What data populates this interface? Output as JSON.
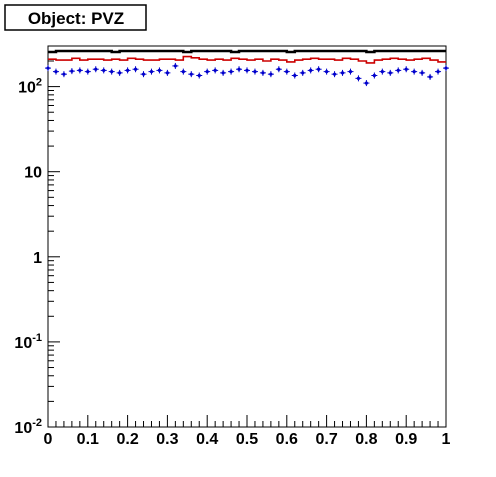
{
  "title": "Object: PVZ",
  "chart_data": {
    "type": "line",
    "title": "Object: PVZ",
    "xlabel": "",
    "ylabel": "",
    "x_scale": "linear",
    "y_scale": "log",
    "xlim": [
      0,
      1
    ],
    "ylim": [
      0.01,
      300
    ],
    "grid": false,
    "x_ticks": [
      {
        "value": 0,
        "label": "0"
      },
      {
        "value": 0.1,
        "label": "0.1"
      },
      {
        "value": 0.2,
        "label": "0.2"
      },
      {
        "value": 0.3,
        "label": "0.3"
      },
      {
        "value": 0.4,
        "label": "0.4"
      },
      {
        "value": 0.5,
        "label": "0.5"
      },
      {
        "value": 0.6,
        "label": "0.6"
      },
      {
        "value": 0.7,
        "label": "0.7"
      },
      {
        "value": 0.8,
        "label": "0.8"
      },
      {
        "value": 0.9,
        "label": "0.9"
      },
      {
        "value": 1,
        "label": "1"
      }
    ],
    "y_ticks": [
      {
        "value": 0.01,
        "base": "10",
        "exp": "-2"
      },
      {
        "value": 0.1,
        "base": "10",
        "exp": "-1"
      },
      {
        "value": 1,
        "base": "1",
        "exp": ""
      },
      {
        "value": 10,
        "base": "10",
        "exp": ""
      },
      {
        "value": 100,
        "base": "10",
        "exp": "2"
      }
    ],
    "bin_edges": [
      0,
      0.02,
      0.04,
      0.06,
      0.08,
      0.1,
      0.12,
      0.14,
      0.16,
      0.18,
      0.2,
      0.22,
      0.24,
      0.26,
      0.28,
      0.3,
      0.32,
      0.34,
      0.36,
      0.38,
      0.4,
      0.42,
      0.44,
      0.46,
      0.48,
      0.5,
      0.52,
      0.54,
      0.56,
      0.58,
      0.6,
      0.62,
      0.64,
      0.66,
      0.68,
      0.7,
      0.72,
      0.74,
      0.76,
      0.78,
      0.8,
      0.82,
      0.84,
      0.86,
      0.88,
      0.9,
      0.92,
      0.94,
      0.96,
      0.98,
      1.0
    ],
    "series": [
      {
        "style": "step",
        "color": "#000000",
        "values": [
          255,
          262,
          262,
          262,
          262,
          262,
          262,
          262,
          255,
          262,
          262,
          262,
          262,
          262,
          262,
          262,
          262,
          255,
          262,
          262,
          262,
          262,
          262,
          255,
          262,
          262,
          262,
          262,
          262,
          262,
          255,
          262,
          262,
          262,
          262,
          262,
          262,
          262,
          262,
          262,
          255,
          262,
          262,
          262,
          262,
          262,
          262,
          262,
          262,
          262
        ]
      },
      {
        "style": "step",
        "color": "#cc0000",
        "values": [
          210,
          205,
          205,
          215,
          205,
          210,
          210,
          205,
          210,
          205,
          215,
          210,
          205,
          205,
          210,
          210,
          205,
          225,
          218,
          210,
          205,
          210,
          205,
          215,
          210,
          205,
          210,
          200,
          210,
          205,
          195,
          205,
          210,
          215,
          210,
          210,
          205,
          215,
          210,
          200,
          190,
          205,
          210,
          215,
          210,
          205,
          210,
          215,
          205,
          195
        ]
      },
      {
        "style": "points-with-errors",
        "color": "#0000cc",
        "values": [
          165,
          150,
          140,
          152,
          155,
          150,
          160,
          155,
          150,
          145,
          155,
          160,
          140,
          150,
          155,
          145,
          175,
          150,
          140,
          135,
          150,
          155,
          145,
          150,
          160,
          155,
          150,
          145,
          140,
          160,
          150,
          135,
          145,
          155,
          160,
          150,
          140,
          145,
          150,
          125,
          110,
          135,
          150,
          145,
          155,
          160,
          150,
          145,
          130,
          150,
          165
        ]
      }
    ]
  }
}
